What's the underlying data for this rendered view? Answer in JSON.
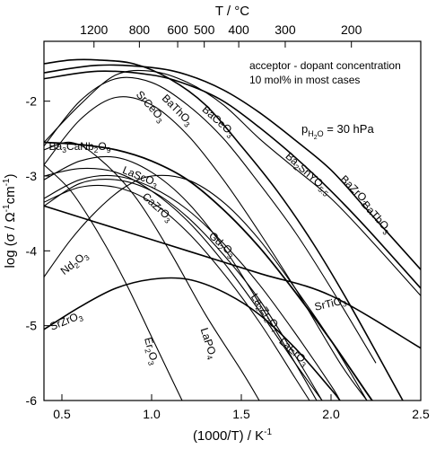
{
  "chart_data": {
    "type": "line",
    "title": "",
    "xlabel": "(1000/T) / K",
    "xlabel_sup": "-1",
    "ylabel": "log (σ / Ω",
    "ylabel_sup1": "-1",
    "ylabel_mid": "cm",
    "ylabel_sup2": "-1",
    "ylabel_end": ")",
    "top_axis_label": "T / °C",
    "xlim": [
      0.4,
      2.5
    ],
    "ylim": [
      -6,
      -1.2
    ],
    "x_ticks": [
      {
        "value": 0.5,
        "label": "0.5"
      },
      {
        "value": 1.0,
        "label": "1.0"
      },
      {
        "value": 1.5,
        "label": "1.5"
      },
      {
        "value": 2.0,
        "label": "2.0"
      },
      {
        "value": 2.5,
        "label": "2.5"
      }
    ],
    "y_ticks": [
      {
        "value": -2,
        "label": "-2"
      },
      {
        "value": -3,
        "label": "-3"
      },
      {
        "value": -4,
        "label": "-4"
      },
      {
        "value": -5,
        "label": "-5"
      },
      {
        "value": -6,
        "label": "-6"
      }
    ],
    "top_ticks": [
      {
        "value": 1200,
        "label": "1200"
      },
      {
        "value": 800,
        "label": "800"
      },
      {
        "value": 600,
        "label": "600"
      },
      {
        "value": 500,
        "label": "500"
      },
      {
        "value": 400,
        "label": "400"
      },
      {
        "value": 300,
        "label": "300"
      },
      {
        "value": 200,
        "label": "200"
      }
    ],
    "annotation_lines": [
      "acceptor - dopant concentration",
      "10 mol% in most cases"
    ],
    "pressure_label": {
      "main": "p",
      "sub": "H",
      "sub2": "2",
      "sub3": "O",
      "rest": " = 30 hPa"
    },
    "series": [
      {
        "name": "BaZrO3",
        "label": [
          [
            "BaZrO",
            ""
          ],
          [
            "3",
            "sub"
          ]
        ],
        "lx": 2.12,
        "ly": -3.22,
        "rot": 45,
        "width": 1.6,
        "points": [
          [
            0.4,
            -1.62
          ],
          [
            0.7,
            -1.52
          ],
          [
            1.0,
            -1.55
          ],
          [
            1.2,
            -1.65
          ],
          [
            1.4,
            -1.85
          ],
          [
            1.6,
            -2.15
          ],
          [
            1.8,
            -2.52
          ],
          [
            2.0,
            -2.92
          ],
          [
            2.2,
            -3.45
          ],
          [
            2.5,
            -4.25
          ]
        ]
      },
      {
        "name": "BaTbO3",
        "label": [
          [
            "BaTbO",
            ""
          ],
          [
            "3",
            "sub"
          ]
        ],
        "lx": 2.24,
        "ly": -3.58,
        "rot": 48,
        "width": 1.6,
        "points": [
          [
            0.4,
            -1.7
          ],
          [
            0.7,
            -1.6
          ],
          [
            1.0,
            -1.65
          ],
          [
            1.2,
            -1.78
          ],
          [
            1.4,
            -2.0
          ],
          [
            1.6,
            -2.35
          ],
          [
            1.8,
            -2.75
          ],
          [
            2.0,
            -3.2
          ],
          [
            2.2,
            -3.7
          ],
          [
            2.5,
            -4.5
          ]
        ]
      },
      {
        "name": "Ba2SnYO5.5",
        "label": [
          [
            "Ba",
            ""
          ],
          [
            "2",
            "sub"
          ],
          [
            "SnYO",
            ""
          ],
          [
            "5.5",
            "sub"
          ]
        ],
        "lx": 1.86,
        "ly": -3.0,
        "rot": 42,
        "width": 1.1,
        "points": [
          [
            0.4,
            -2.55
          ],
          [
            0.6,
            -2.05
          ],
          [
            0.8,
            -1.65
          ],
          [
            1.0,
            -1.6
          ],
          [
            1.2,
            -1.75
          ],
          [
            1.4,
            -2.05
          ],
          [
            1.6,
            -2.5
          ],
          [
            1.8,
            -2.9
          ],
          [
            2.0,
            -3.3
          ],
          [
            2.2,
            -3.8
          ],
          [
            2.5,
            -4.6
          ]
        ]
      },
      {
        "name": "BaCeO3",
        "label": [
          [
            "BaCeO",
            ""
          ],
          [
            "3",
            "sub"
          ]
        ],
        "lx": 1.36,
        "ly": -2.3,
        "rot": 42,
        "width": 1.6,
        "points": [
          [
            0.4,
            -1.5
          ],
          [
            0.55,
            -1.45
          ],
          [
            0.7,
            -1.45
          ],
          [
            0.9,
            -1.5
          ],
          [
            1.1,
            -1.7
          ],
          [
            1.3,
            -2.05
          ],
          [
            1.5,
            -2.6
          ],
          [
            1.7,
            -3.2
          ],
          [
            1.9,
            -3.9
          ],
          [
            2.1,
            -4.7
          ],
          [
            2.4,
            -6.0
          ]
        ]
      },
      {
        "name": "BaThO3",
        "label": [
          [
            "BaThO",
            ""
          ],
          [
            "3",
            "sub"
          ]
        ],
        "lx": 1.13,
        "ly": -2.15,
        "rot": 45,
        "width": 1.1,
        "points": [
          [
            0.4,
            -2.6
          ],
          [
            0.6,
            -2.0
          ],
          [
            0.8,
            -1.7
          ],
          [
            1.0,
            -1.75
          ],
          [
            1.2,
            -2.05
          ],
          [
            1.4,
            -2.5
          ],
          [
            1.6,
            -3.1
          ],
          [
            1.8,
            -3.75
          ],
          [
            2.0,
            -4.5
          ],
          [
            2.25,
            -5.5
          ]
        ]
      },
      {
        "name": "SrCeO3",
        "label": [
          [
            "SrCeO",
            ""
          ],
          [
            "3",
            "sub"
          ]
        ],
        "lx": 0.98,
        "ly": -2.1,
        "rot": 48,
        "width": 1.1,
        "points": [
          [
            0.4,
            -2.85
          ],
          [
            0.6,
            -2.25
          ],
          [
            0.8,
            -1.95
          ],
          [
            1.0,
            -2.05
          ],
          [
            1.2,
            -2.45
          ],
          [
            1.4,
            -3.05
          ],
          [
            1.6,
            -3.75
          ],
          [
            1.8,
            -4.5
          ],
          [
            2.05,
            -5.5
          ],
          [
            2.2,
            -6.0
          ]
        ]
      },
      {
        "name": "Ba3CaNb2O9",
        "label": [
          [
            "Ba",
            ""
          ],
          [
            "3",
            "sub"
          ],
          [
            "CaNb",
            ""
          ],
          [
            "2",
            "sub"
          ],
          [
            "O",
            ""
          ],
          [
            "9",
            "sub"
          ]
        ],
        "lx": 0.6,
        "ly": -2.65,
        "rot": 0,
        "width": 1.8,
        "points": [
          [
            0.4,
            -2.55
          ],
          [
            0.6,
            -2.58
          ],
          [
            0.8,
            -2.65
          ],
          [
            1.0,
            -2.8
          ],
          [
            1.2,
            -3.05
          ],
          [
            1.4,
            -3.45
          ],
          [
            1.6,
            -3.95
          ],
          [
            1.8,
            -4.55
          ],
          [
            2.0,
            -5.2
          ],
          [
            2.2,
            -5.9
          ],
          [
            2.23,
            -6.0
          ]
        ]
      },
      {
        "name": "LaScO3",
        "label": [
          [
            "LaScO",
            ""
          ],
          [
            "3",
            "sub"
          ]
        ],
        "lx": 0.93,
        "ly": -3.05,
        "rot": 22,
        "width": 1.1,
        "points": [
          [
            0.4,
            -3.3
          ],
          [
            0.6,
            -3.05
          ],
          [
            0.8,
            -3.0
          ],
          [
            1.0,
            -3.15
          ],
          [
            1.2,
            -3.45
          ],
          [
            1.4,
            -3.9
          ],
          [
            1.6,
            -4.45
          ],
          [
            1.8,
            -5.1
          ],
          [
            2.0,
            -5.8
          ],
          [
            2.05,
            -6.0
          ]
        ]
      },
      {
        "name": "CaZrO3",
        "label": [
          [
            "CaZrO",
            ""
          ],
          [
            "3",
            "sub"
          ]
        ],
        "lx": 1.02,
        "ly": -3.45,
        "rot": 42,
        "width": 1.1,
        "points": [
          [
            0.4,
            -3.0
          ],
          [
            0.6,
            -2.9
          ],
          [
            0.8,
            -2.95
          ],
          [
            1.0,
            -3.2
          ],
          [
            1.2,
            -3.6
          ],
          [
            1.4,
            -4.15
          ],
          [
            1.6,
            -4.8
          ],
          [
            1.8,
            -5.5
          ],
          [
            1.95,
            -6.0
          ]
        ]
      },
      {
        "name": "SrTiO3",
        "label": [
          [
            "SrTiO",
            ""
          ],
          [
            "3",
            "sub"
          ]
        ],
        "lx": 2.0,
        "ly": -4.75,
        "rot": -13,
        "width": 1.6,
        "points": [
          [
            0.4,
            -3.4
          ],
          [
            0.8,
            -3.7
          ],
          [
            1.2,
            -4.0
          ],
          [
            1.6,
            -4.3
          ],
          [
            2.0,
            -4.6
          ],
          [
            2.5,
            -5.3
          ]
        ]
      },
      {
        "name": "Gd2O3",
        "label": [
          [
            "Gd",
            ""
          ],
          [
            "2",
            "sub"
          ],
          [
            "O",
            ""
          ],
          [
            "3",
            "sub"
          ]
        ],
        "lx": 1.38,
        "ly": -3.95,
        "rot": 42,
        "width": 1.1,
        "points": [
          [
            0.4,
            -3.4
          ],
          [
            0.6,
            -3.1
          ],
          [
            0.8,
            -3.05
          ],
          [
            1.0,
            -3.2
          ],
          [
            1.2,
            -3.55
          ],
          [
            1.4,
            -4.05
          ],
          [
            1.6,
            -4.65
          ],
          [
            1.8,
            -5.4
          ],
          [
            1.95,
            -6.0
          ]
        ]
      },
      {
        "name": "Nd2O3",
        "label": [
          [
            "Nd",
            ""
          ],
          [
            "2",
            "sub"
          ],
          [
            "O",
            ""
          ],
          [
            "3",
            "sub"
          ]
        ],
        "lx": 0.58,
        "ly": -4.2,
        "rot": -38,
        "width": 1.1,
        "points": [
          [
            0.4,
            -4.35
          ],
          [
            0.55,
            -3.85
          ],
          [
            0.7,
            -3.45
          ],
          [
            0.85,
            -3.15
          ],
          [
            1.0,
            -3.0
          ],
          [
            1.2,
            -3.05
          ],
          [
            1.4,
            -3.35
          ],
          [
            1.6,
            -3.85
          ],
          [
            1.8,
            -4.5
          ],
          [
            2.0,
            -5.2
          ],
          [
            2.2,
            -6.0
          ]
        ]
      },
      {
        "name": "La2Zr2O7",
        "label": [
          [
            "La",
            ""
          ],
          [
            "2",
            "sub"
          ],
          [
            "Zr",
            ""
          ],
          [
            "2",
            "sub"
          ],
          [
            "O",
            ""
          ],
          [
            "7",
            "sub"
          ]
        ],
        "lx": 1.62,
        "ly": -4.85,
        "rot": 55,
        "width": 1.1,
        "points": [
          [
            0.4,
            -3.05
          ],
          [
            0.6,
            -2.8
          ],
          [
            0.8,
            -2.75
          ],
          [
            1.0,
            -2.95
          ],
          [
            1.2,
            -3.35
          ],
          [
            1.4,
            -3.95
          ],
          [
            1.6,
            -4.7
          ],
          [
            1.8,
            -5.5
          ],
          [
            1.92,
            -6.0
          ]
        ]
      },
      {
        "name": "LaErO3",
        "label": [
          [
            "LaErO",
            ""
          ],
          [
            "3",
            "sub"
          ]
        ],
        "lx": 1.78,
        "ly": -5.38,
        "rot": 42,
        "width": 1.1,
        "points": [
          [
            0.4,
            -3.35
          ],
          [
            0.6,
            -3.15
          ],
          [
            0.8,
            -3.15
          ],
          [
            1.0,
            -3.35
          ],
          [
            1.2,
            -3.75
          ],
          [
            1.4,
            -4.3
          ],
          [
            1.6,
            -4.95
          ],
          [
            1.8,
            -5.7
          ],
          [
            1.88,
            -6.0
          ]
        ]
      },
      {
        "name": "SrZrO3",
        "label": [
          [
            "SrZrO",
            ""
          ],
          [
            "3",
            "sub"
          ]
        ],
        "lx": 0.53,
        "ly": -4.98,
        "rot": -22,
        "width": 1.6,
        "points": [
          [
            0.4,
            -5.05
          ],
          [
            0.6,
            -4.75
          ],
          [
            0.8,
            -4.5
          ],
          [
            1.0,
            -4.38
          ],
          [
            1.2,
            -4.38
          ],
          [
            1.4,
            -4.55
          ],
          [
            1.6,
            -4.85
          ],
          [
            1.8,
            -5.3
          ],
          [
            2.0,
            -5.85
          ],
          [
            2.05,
            -6.0
          ]
        ]
      },
      {
        "name": "LaPO4",
        "label": [
          [
            "LaPO",
            ""
          ],
          [
            "4",
            "sub"
          ]
        ],
        "lx": 1.3,
        "ly": -5.25,
        "rot": 72,
        "width": 1.1,
        "points": [
          [
            0.4,
            -2.65
          ],
          [
            0.55,
            -2.55
          ],
          [
            0.7,
            -2.75
          ],
          [
            0.9,
            -3.25
          ],
          [
            1.1,
            -4.0
          ],
          [
            1.3,
            -4.85
          ],
          [
            1.5,
            -5.6
          ],
          [
            1.6,
            -6.0
          ]
        ]
      },
      {
        "name": "Er2O3",
        "label": [
          [
            "Er",
            ""
          ],
          [
            "2",
            "sub"
          ],
          [
            "O",
            ""
          ],
          [
            "3",
            "sub"
          ]
        ],
        "lx": 0.98,
        "ly": -5.35,
        "rot": 75,
        "width": 1.1,
        "points": [
          [
            0.4,
            -2.85
          ],
          [
            0.55,
            -3.2
          ],
          [
            0.7,
            -3.75
          ],
          [
            0.85,
            -4.4
          ],
          [
            1.0,
            -5.15
          ],
          [
            1.12,
            -5.75
          ],
          [
            1.17,
            -6.0
          ]
        ]
      }
    ]
  }
}
